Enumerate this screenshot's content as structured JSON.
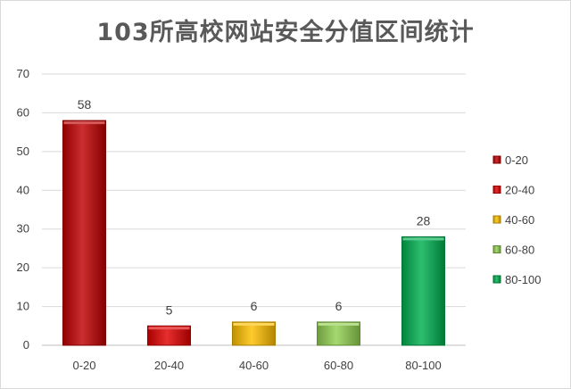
{
  "chart_data": {
    "type": "bar",
    "title": "103所高校网站安全分值区间统计",
    "categories": [
      "0-20",
      "20-40",
      "40-60",
      "60-80",
      "80-100"
    ],
    "values": [
      58,
      5,
      6,
      6,
      28
    ],
    "colors": [
      "#c00000",
      "#e00000",
      "#ffc000",
      "#92d050",
      "#00b050"
    ],
    "ylim": [
      0,
      70
    ],
    "yticks": [
      0,
      10,
      20,
      30,
      40,
      50,
      60,
      70
    ],
    "grid": true,
    "legend": {
      "placement": "right",
      "entries": [
        "0-20",
        "20-40",
        "40-60",
        "60-80",
        "80-100"
      ]
    }
  }
}
